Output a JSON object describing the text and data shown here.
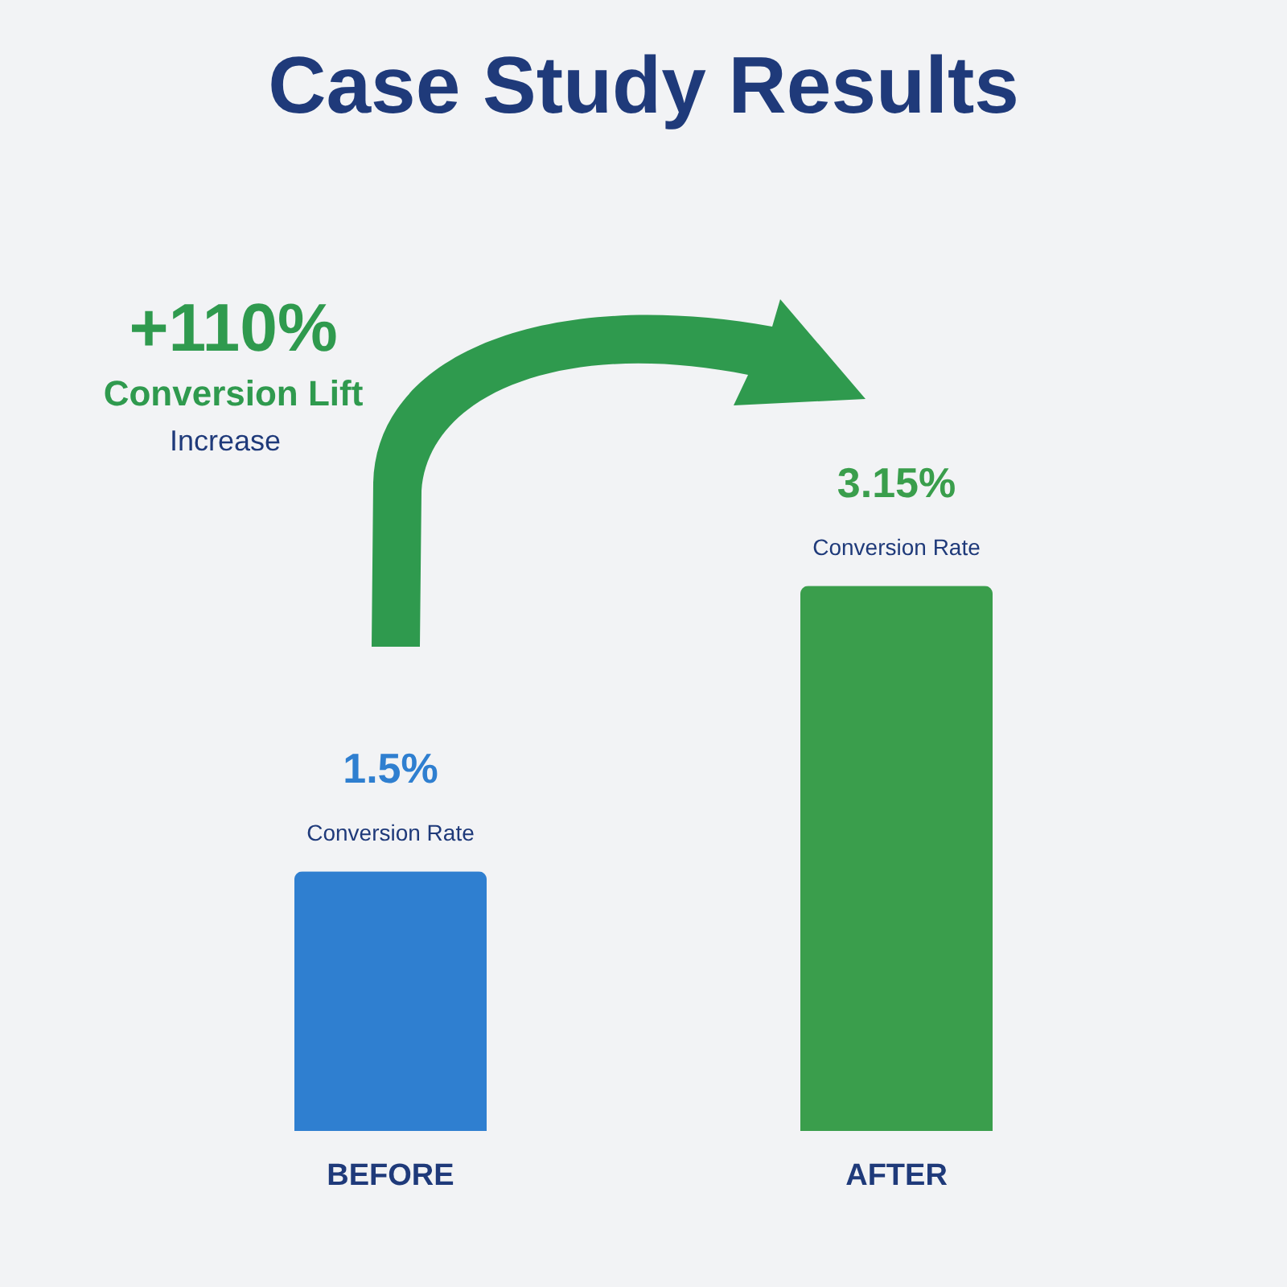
{
  "chart_data": {
    "type": "bar",
    "title": "Case Study Results",
    "categories": [
      "BEFORE",
      "AFTER"
    ],
    "values": [
      1.5,
      3.15
    ],
    "colors": [
      "#2f7fd0",
      "#3a9e4c"
    ],
    "value_labels": [
      "1.5%",
      "3.15%"
    ],
    "annotations": [
      "+110%",
      "Conversion Lift",
      "Increase",
      {
        "text": "Conversion Rate",
        "x": "BEFORE",
        "y": 1.5
      },
      {
        "text": "Conversion Rate",
        "x": "AFTER",
        "y": 3.15
      }
    ]
  }
}
